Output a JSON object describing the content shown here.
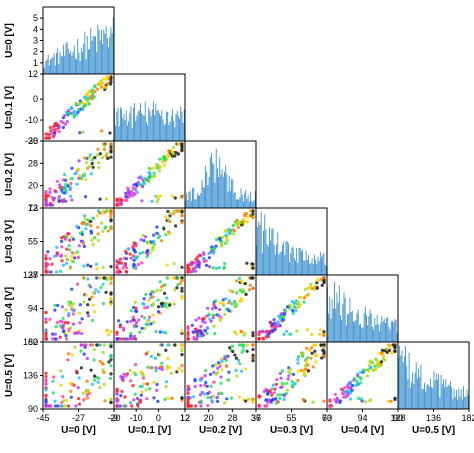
{
  "chart_data": {
    "type": "scatter",
    "layout": "lower-triangular scatter-plot matrix with histograms on the diagonal",
    "variables": [
      {
        "label": "U=0 [V]",
        "range": [
          -45,
          -9
        ],
        "ticks": [
          -45,
          -27,
          -9
        ]
      },
      {
        "label": "U=0.1 [V]",
        "range": [
          -20,
          12
        ],
        "ticks": [
          -20,
          -10,
          0,
          12
        ]
      },
      {
        "label": "U=0.2 [V]",
        "range": [
          12,
          36
        ],
        "ticks": [
          12,
          20,
          28,
          36
        ]
      },
      {
        "label": "U=0.3 [V]",
        "range": [
          37,
          73
        ],
        "ticks": [
          37,
          55,
          73
        ]
      },
      {
        "label": "U=0.4 [V]",
        "range": [
          60,
          128
        ],
        "ticks": [
          60,
          94,
          128
        ]
      },
      {
        "label": "U=0.5 [V]",
        "range": [
          90,
          182
        ],
        "ticks": [
          90,
          136,
          182
        ]
      }
    ],
    "x_axis_labels": [
      "U=0 [V]",
      "U=0.1 [V]",
      "U=0.2 [V]",
      "U=0.3 [V]",
      "U=0.4 [V]",
      "U=0.5 [V]"
    ],
    "y_axis_labels": [
      "U=0 [V]",
      "U=0.1 [V]",
      "U=0.2 [V]",
      "U=0.3 [V]",
      "U=0.4 [V]",
      "U=0.5 [V]"
    ],
    "first_histogram_count_ticks": [
      1,
      2,
      3,
      4,
      5
    ],
    "first_histogram_count_range": [
      0,
      6
    ],
    "histogram_color": "#3a8fd0",
    "cluster_colors": [
      "#ff2020",
      "#ff40b0",
      "#b040ff",
      "#2040ff",
      "#20c0ff",
      "#20e060",
      "#a0e020",
      "#ffd000",
      "#ff8000",
      "#202020"
    ],
    "grid": false,
    "legend": "none"
  }
}
